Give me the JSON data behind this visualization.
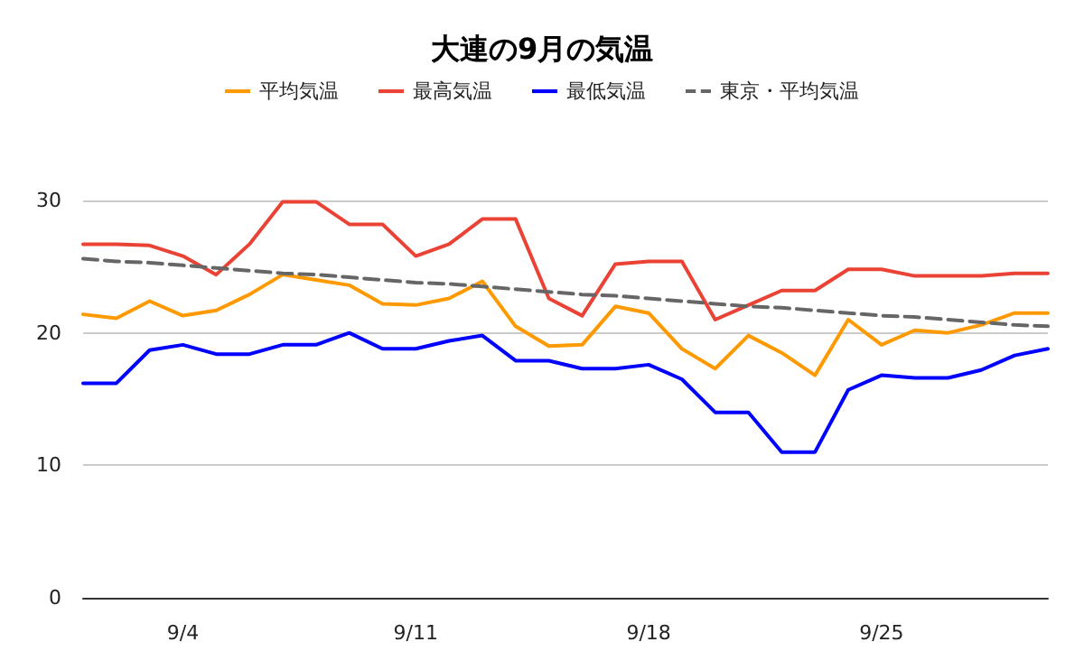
{
  "chart_data": {
    "type": "line",
    "title": "大連の9月の気温",
    "categories": [
      null,
      null,
      null,
      "9/4",
      null,
      null,
      null,
      null,
      null,
      null,
      "9/11",
      null,
      null,
      null,
      null,
      null,
      null,
      "9/18",
      null,
      null,
      null,
      null,
      null,
      null,
      "9/25",
      null,
      null,
      null,
      null,
      null
    ],
    "series": [
      {
        "name": "平均気温",
        "color": "#ff9900",
        "line_style": "solid",
        "values": [
          21.4,
          21.1,
          22.4,
          21.3,
          21.7,
          22.9,
          24.4,
          24.0,
          23.6,
          22.2,
          22.1,
          22.6,
          23.9,
          20.5,
          19.0,
          19.1,
          22.0,
          21.5,
          18.8,
          17.3,
          19.8,
          18.5,
          16.8,
          21.0,
          19.1,
          20.2,
          20.0,
          20.6,
          21.5,
          21.5
        ]
      },
      {
        "name": "最高気温",
        "color": "#ea4335",
        "line_style": "solid",
        "values": [
          26.7,
          26.7,
          26.6,
          25.8,
          24.4,
          26.7,
          29.9,
          29.9,
          28.2,
          28.2,
          25.8,
          26.7,
          28.6,
          28.6,
          22.6,
          21.3,
          25.2,
          25.4,
          25.4,
          21.0,
          22.1,
          23.2,
          23.2,
          24.8,
          24.8,
          24.3,
          24.3,
          24.3,
          24.5,
          24.5
        ]
      },
      {
        "name": "最低気温",
        "color": "#0000ff",
        "line_style": "solid",
        "values": [
          16.2,
          16.2,
          18.7,
          19.1,
          18.4,
          18.4,
          19.1,
          19.1,
          20.0,
          18.8,
          18.8,
          19.4,
          19.8,
          17.9,
          17.9,
          17.3,
          17.3,
          17.6,
          16.5,
          14.0,
          14.0,
          11.0,
          11.0,
          15.7,
          16.8,
          16.6,
          16.6,
          17.2,
          18.3,
          18.8
        ]
      },
      {
        "name": "東京・平均気温",
        "color": "#666666",
        "line_style": "dashed",
        "values": [
          25.6,
          25.4,
          25.3,
          25.1,
          24.9,
          24.7,
          24.5,
          24.4,
          24.2,
          24.0,
          23.8,
          23.7,
          23.5,
          23.3,
          23.1,
          22.9,
          22.8,
          22.6,
          22.4,
          22.2,
          22.0,
          21.9,
          21.7,
          21.5,
          21.3,
          21.2,
          21.0,
          20.8,
          20.6,
          20.5
        ]
      }
    ],
    "ylim": [
      0,
      30
    ],
    "yticks": [
      0,
      10,
      20,
      30
    ],
    "grid": "y",
    "legend": "top",
    "marker": "none"
  }
}
